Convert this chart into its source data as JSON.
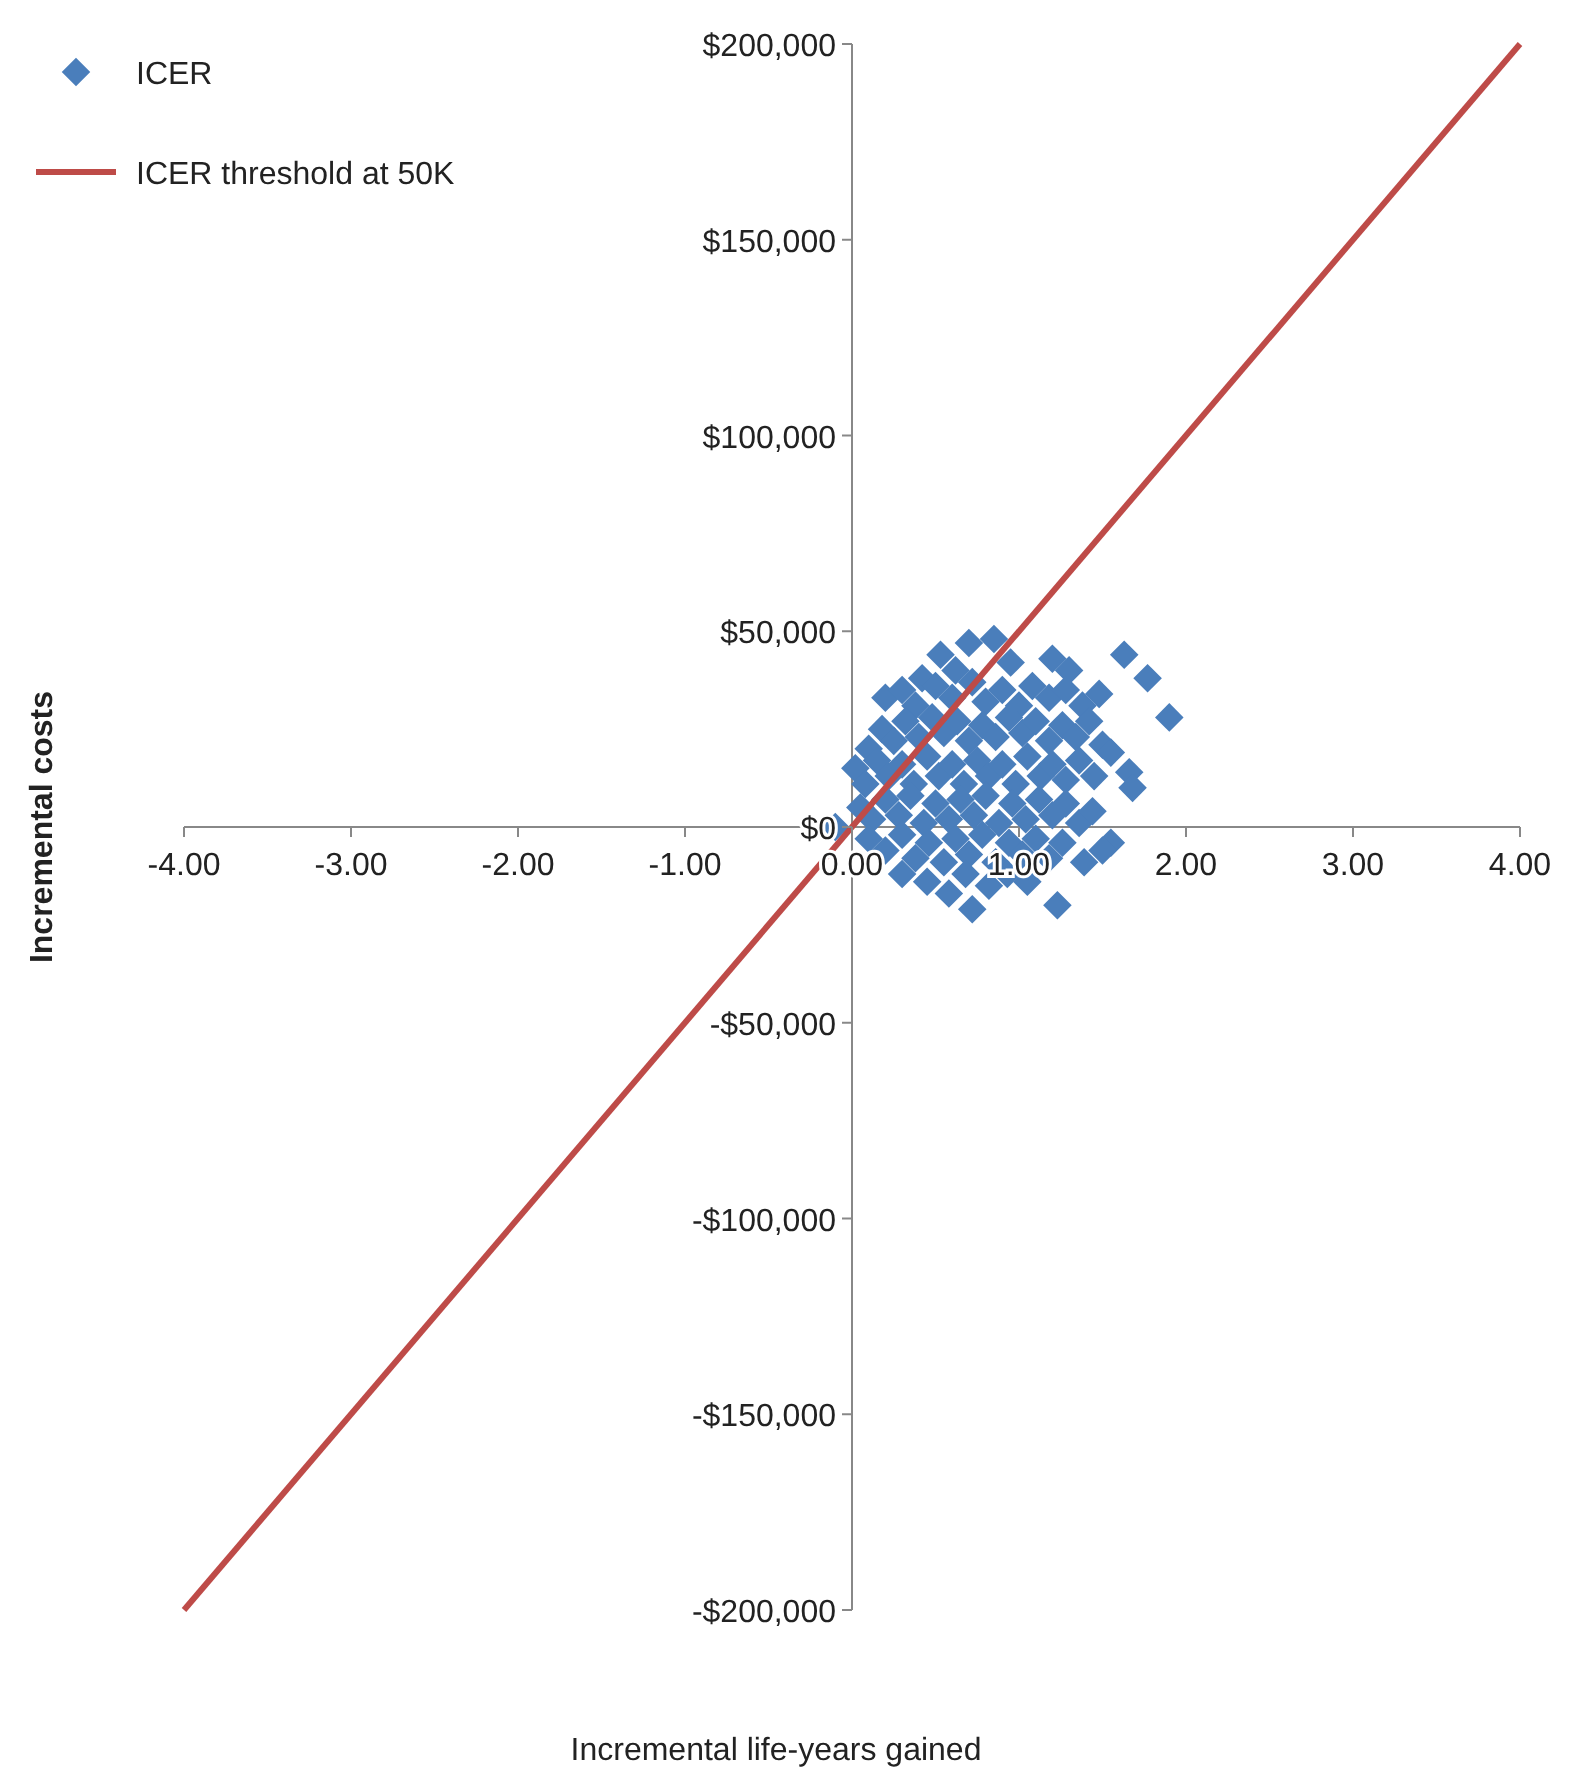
{
  "chart_data": {
    "type": "scatter",
    "xlabel": "Incremental life-years gained",
    "ylabel": "Incremental costs",
    "xlim": [
      -4,
      4
    ],
    "ylim": [
      -200000,
      200000
    ],
    "xticks": [
      {
        "value": -4,
        "label": "-4.00"
      },
      {
        "value": -3,
        "label": "-3.00"
      },
      {
        "value": -2,
        "label": "-2.00"
      },
      {
        "value": -1,
        "label": "-1.00"
      },
      {
        "value": 0,
        "label": "0.00"
      },
      {
        "value": 1,
        "label": "1.00"
      },
      {
        "value": 2,
        "label": "2.00"
      },
      {
        "value": 3,
        "label": "3.00"
      },
      {
        "value": 4,
        "label": "4.00"
      }
    ],
    "yticks": [
      {
        "value": -200000,
        "label": "-$200,000"
      },
      {
        "value": -150000,
        "label": "-$150,000"
      },
      {
        "value": -100000,
        "label": "-$100,000"
      },
      {
        "value": -50000,
        "label": "-$50,000"
      },
      {
        "value": 0,
        "label": "$0"
      },
      {
        "value": 50000,
        "label": "$50,000"
      },
      {
        "value": 100000,
        "label": "$100,000"
      },
      {
        "value": 150000,
        "label": "$150,000"
      },
      {
        "value": 200000,
        "label": "$200,000"
      }
    ],
    "grid": false,
    "legend": "top left",
    "marker": "diamond",
    "series": [
      {
        "name": "ICER",
        "color": "#4a7ebb",
        "x": [
          0.53,
          0.7,
          0.85,
          0.62,
          0.95,
          1.2,
          1.3,
          0.42,
          0.2,
          0.3,
          0.38,
          0.5,
          0.6,
          0.72,
          0.8,
          0.9,
          1.0,
          1.08,
          1.18,
          1.28,
          1.38,
          1.48,
          0.1,
          0.18,
          0.25,
          0.32,
          0.4,
          0.48,
          0.55,
          0.63,
          0.7,
          0.78,
          0.86,
          0.94,
          1.02,
          1.1,
          1.18,
          1.26,
          1.34,
          1.42,
          1.5,
          0.02,
          0.08,
          0.15,
          0.22,
          0.3,
          0.37,
          0.45,
          0.52,
          0.6,
          0.67,
          0.75,
          0.82,
          0.9,
          0.98,
          1.05,
          1.13,
          1.2,
          1.28,
          1.36,
          1.45,
          1.55,
          0.05,
          0.12,
          0.2,
          0.28,
          0.35,
          0.43,
          0.5,
          0.58,
          0.65,
          0.73,
          0.8,
          0.88,
          0.96,
          1.04,
          1.12,
          1.2,
          1.28,
          1.36,
          1.44,
          0.1,
          0.2,
          0.3,
          0.38,
          0.46,
          0.55,
          0.62,
          0.7,
          0.78,
          0.86,
          0.94,
          1.02,
          1.1,
          1.18,
          1.26,
          0.3,
          0.45,
          0.58,
          0.72,
          0.68,
          0.82,
          0.93,
          1.05,
          1.23,
          -0.1,
          1.63,
          1.77,
          1.9,
          1.66,
          1.68,
          1.55,
          1.39,
          1.5
        ],
        "values": [
          44000,
          47000,
          48000,
          40000,
          42000,
          43000,
          40000,
          38000,
          33000,
          35000,
          31000,
          36000,
          33000,
          37000,
          32000,
          35000,
          31000,
          36000,
          33000,
          35000,
          31000,
          34000,
          20000,
          25000,
          22000,
          27000,
          23000,
          28000,
          24000,
          27000,
          22000,
          26000,
          23000,
          28000,
          24000,
          27000,
          22000,
          26000,
          23000,
          27000,
          21000,
          15000,
          11000,
          17000,
          13000,
          16000,
          11000,
          18000,
          13000,
          16000,
          11000,
          17000,
          13000,
          16000,
          11000,
          18000,
          13000,
          16000,
          12000,
          17000,
          13000,
          19000,
          5000,
          2000,
          7000,
          3000,
          8000,
          1000,
          6000,
          2000,
          7000,
          3000,
          8000,
          1000,
          6000,
          2000,
          7000,
          3000,
          6000,
          1000,
          4000,
          -3000,
          -6000,
          -2000,
          -8000,
          -4000,
          -9000,
          -3000,
          -7000,
          -2000,
          -9000,
          -4000,
          -7000,
          -3000,
          -8000,
          -4000,
          -12000,
          -14000,
          -17000,
          -21000,
          -12000,
          -15000,
          -12000,
          -14000,
          -20000,
          0,
          44000,
          38000,
          28000,
          14000,
          10000,
          -4000,
          -9000,
          -6000
        ]
      },
      {
        "name": "ICER threshold at 50K",
        "type": "line",
        "color": "#be4b48",
        "line_style": "solid",
        "marker": "none",
        "x": [
          -4,
          4
        ],
        "values": [
          -200000,
          200000
        ]
      }
    ]
  }
}
